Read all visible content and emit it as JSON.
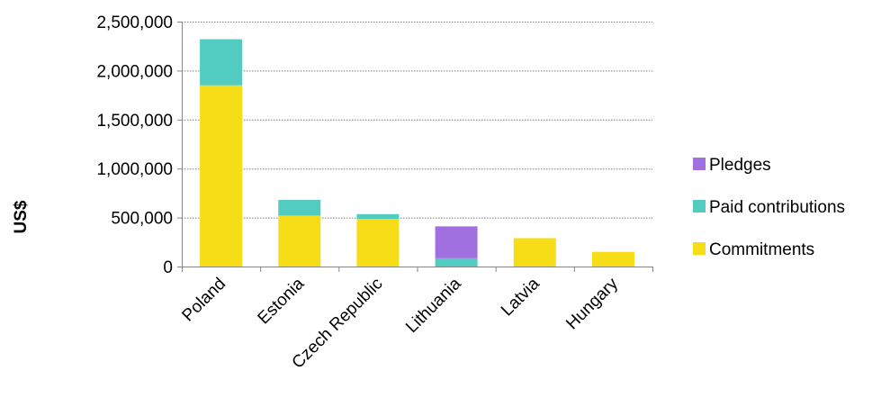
{
  "chart_data": {
    "type": "bar",
    "stacked": true,
    "categories": [
      "Poland",
      "Estonia",
      "Czech Republic",
      "Lithuania",
      "Latvia",
      "Hungary"
    ],
    "series": [
      {
        "name": "Commitments",
        "color": "#F7DC18",
        "values": [
          1850000,
          520000,
          485000,
          0,
          290000,
          150000
        ]
      },
      {
        "name": "Paid contributions",
        "color": "#52CBC1",
        "values": [
          470000,
          160000,
          50000,
          85000,
          0,
          0
        ]
      },
      {
        "name": "Pledges",
        "color": "#A070E0",
        "values": [
          0,
          0,
          0,
          325000,
          0,
          0
        ]
      }
    ],
    "ylabel": "US$",
    "ylim": [
      0,
      2500000
    ],
    "yticks": [
      0,
      500000,
      1000000,
      1500000,
      2000000,
      2500000
    ],
    "ytick_labels": [
      "0",
      "500,000",
      "1,000,000",
      "1,500,000",
      "2,000,000",
      "2,500,000"
    ],
    "grid": "horizontal-dotted",
    "legend_position": "right",
    "legend_order": [
      "Pledges",
      "Paid contributions",
      "Commitments"
    ]
  }
}
